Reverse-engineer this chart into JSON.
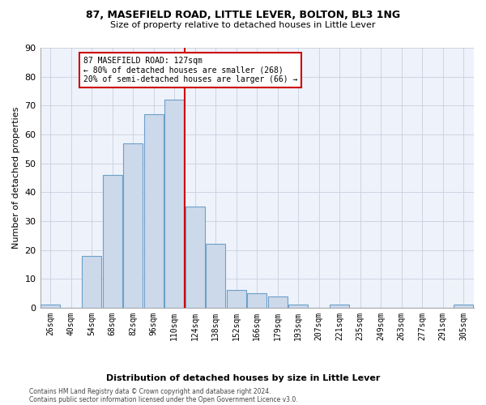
{
  "title": "87, MASEFIELD ROAD, LITTLE LEVER, BOLTON, BL3 1NG",
  "subtitle": "Size of property relative to detached houses in Little Lever",
  "xlabel": "Distribution of detached houses by size in Little Lever",
  "ylabel": "Number of detached properties",
  "bar_color": "#ccd9ea",
  "bar_edge_color": "#6ca0c8",
  "background_color": "#eef2fa",
  "grid_color": "#c8cfe0",
  "categories": [
    "26sqm",
    "40sqm",
    "54sqm",
    "68sqm",
    "82sqm",
    "96sqm",
    "110sqm",
    "124sqm",
    "138sqm",
    "152sqm",
    "166sqm",
    "179sqm",
    "193sqm",
    "207sqm",
    "221sqm",
    "235sqm",
    "249sqm",
    "263sqm",
    "277sqm",
    "291sqm",
    "305sqm"
  ],
  "values": [
    1,
    0,
    18,
    46,
    57,
    67,
    72,
    35,
    22,
    6,
    5,
    4,
    1,
    0,
    1,
    0,
    0,
    0,
    0,
    0,
    1
  ],
  "property_size_bin": 7,
  "property_label": "127sqm",
  "vline_color": "#cc0000",
  "annotation_text_line1": "87 MASEFIELD ROAD: 127sqm",
  "annotation_text_line2": "← 80% of detached houses are smaller (268)",
  "annotation_text_line3": "20% of semi-detached houses are larger (66) →",
  "annotation_box_color": "#cc0000",
  "ylim": [
    0,
    90
  ],
  "yticks": [
    0,
    10,
    20,
    30,
    40,
    50,
    60,
    70,
    80,
    90
  ],
  "title_fontsize": 9,
  "subtitle_fontsize": 8,
  "footer_line1": "Contains HM Land Registry data © Crown copyright and database right 2024.",
  "footer_line2": "Contains public sector information licensed under the Open Government Licence v3.0."
}
